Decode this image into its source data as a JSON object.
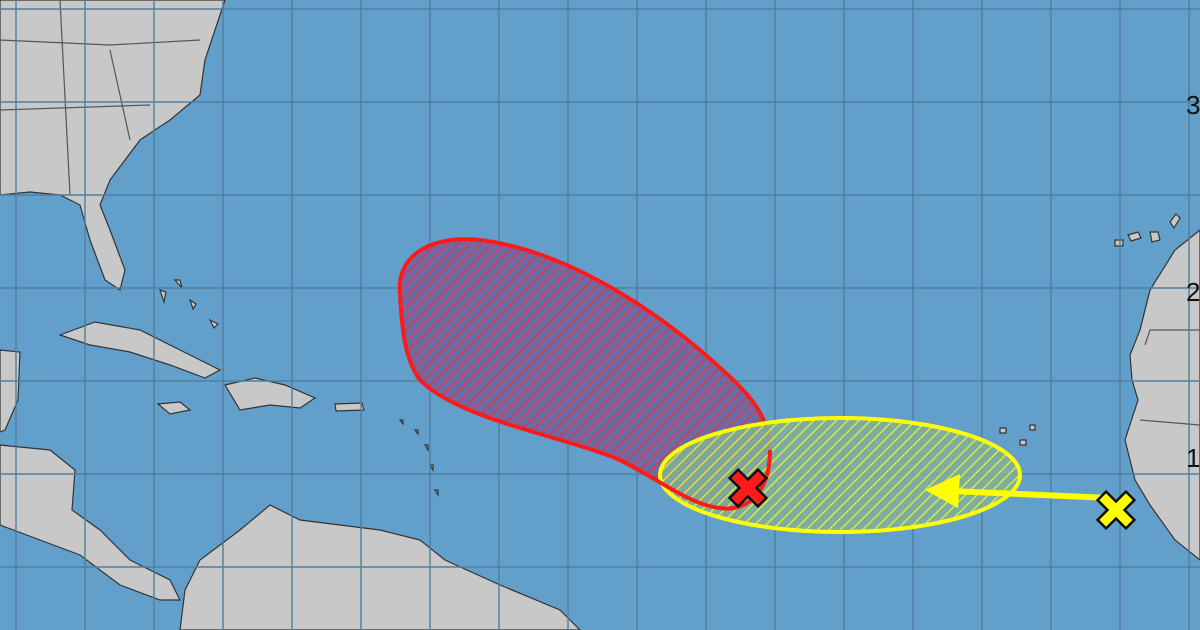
{
  "map": {
    "colors": {
      "ocean": "#62a0cb",
      "land": "#c8c8c8",
      "grid": "#4f7f9f",
      "high_chance_area": "#ff1a1a",
      "low_chance_area": "#ffff00",
      "border": "#555555"
    },
    "latitude_labels": [
      "3",
      "2",
      "1"
    ],
    "areas": [
      {
        "name": "high-chance-area",
        "color": "#ff1a1a",
        "pattern": "hatched"
      },
      {
        "name": "low-chance-area",
        "color": "#ffff00",
        "pattern": "hatched"
      }
    ],
    "markers": [
      {
        "name": "red-disturbance-marker",
        "icon": "x-icon",
        "color": "#ff1a1a"
      },
      {
        "name": "yellow-disturbance-marker",
        "icon": "x-icon",
        "color": "#ffff00"
      }
    ],
    "motion_arrow": {
      "color": "#ffff00",
      "direction": "west"
    }
  }
}
